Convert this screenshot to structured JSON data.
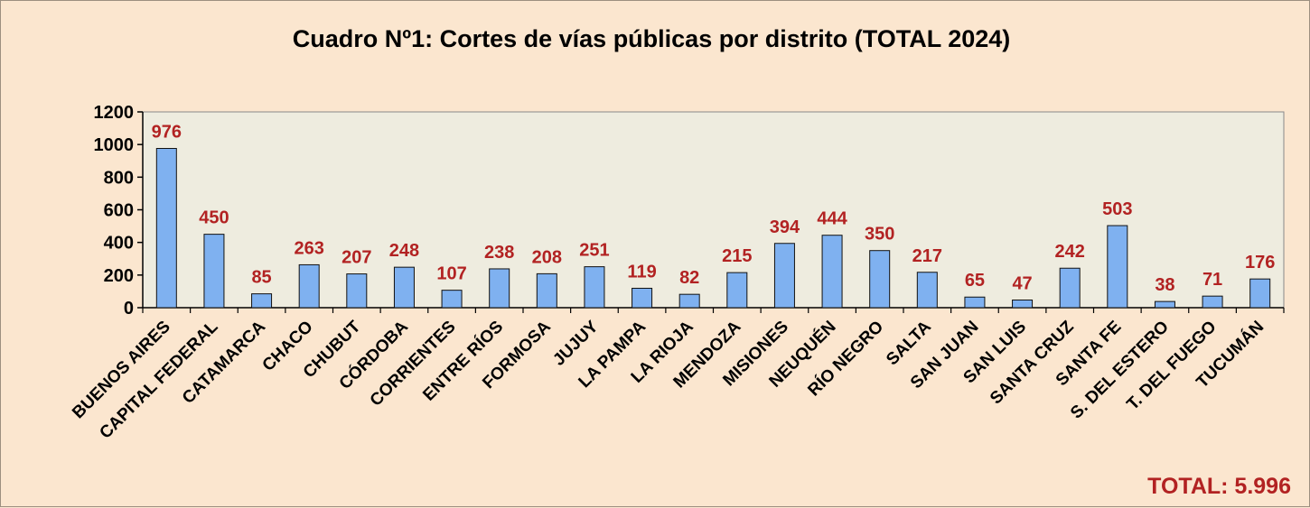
{
  "colors": {
    "background": "#fbe6cf",
    "plot_area": "#eeecdf",
    "bar_fill": "#7fb1f0",
    "bar_stroke": "#111111",
    "data_label": "#b22222",
    "total_text": "#b22222"
  },
  "total_label": "TOTAL: 5.996",
  "chart_data": {
    "type": "bar",
    "title": "Cuadro Nº1: Cortes de vías públicas por distrito (TOTAL 2024)",
    "xlabel": "",
    "ylabel": "",
    "ylim": [
      0,
      1200
    ],
    "yticks": [
      0,
      200,
      400,
      600,
      800,
      1000,
      1200
    ],
    "grid": false,
    "legend": "none",
    "categories": [
      "BUENOS AIRES",
      "CAPITAL FEDERAL",
      "CATAMARCA",
      "CHACO",
      "CHUBUT",
      "CÓRDOBA",
      "CORRIENTES",
      "ENTRE RÍOS",
      "FORMOSA",
      "JUJUY",
      "LA PAMPA",
      "LA RIOJA",
      "MENDOZA",
      "MISIONES",
      "NEUQUÉN",
      "RÍO NEGRO",
      "SALTA",
      "SAN JUAN",
      "SAN LUIS",
      "SANTA CRUZ",
      "SANTA FE",
      "S. DEL ESTERO",
      "T. DEL FUEGO",
      "TUCUMÁN"
    ],
    "values": [
      976,
      450,
      85,
      263,
      207,
      248,
      107,
      238,
      208,
      251,
      119,
      82,
      215,
      394,
      444,
      350,
      217,
      65,
      47,
      242,
      503,
      38,
      71,
      176
    ]
  }
}
